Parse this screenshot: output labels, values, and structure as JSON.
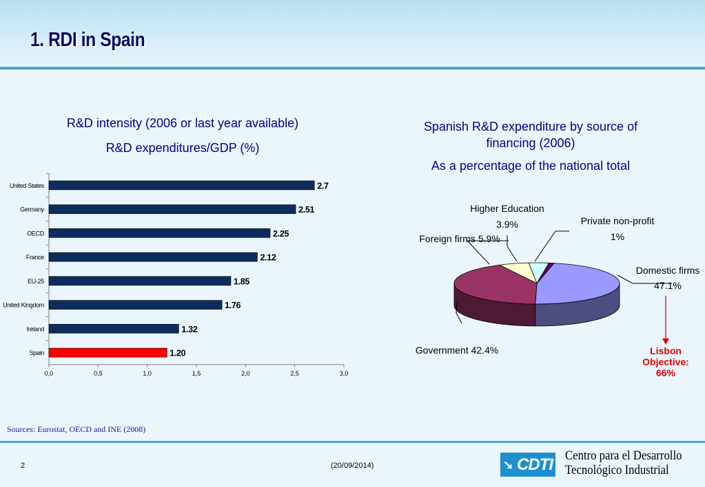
{
  "slide": {
    "title": "1. RDI in Spain",
    "sources": "Sources: Eurostat, OECD and INE (2008)",
    "page_number": "2",
    "date": "(20/09/2014)",
    "logo_text": "CDTI",
    "org_line1": "Centro para el Desarrollo",
    "org_line2": "Tecnológico Industrial"
  },
  "left_chart": {
    "title_line1": "R&D intensity (2006 or last year available)",
    "title_line2": "R&D expenditures/GDP (%)"
  },
  "right_chart": {
    "title_line1": "Spanish R&D expenditure by source of",
    "title_line2": "financing  (2006)",
    "subtitle": "As a percentage of the national total",
    "lisbon_line1": "Lisbon",
    "lisbon_line2": "Objective:",
    "lisbon_line3": "66%"
  },
  "chart_data": [
    {
      "type": "bar",
      "orientation": "horizontal",
      "title": "R&D intensity (2006 or last year available)",
      "subtitle": "R&D expenditures/GDP (%)",
      "categories": [
        "United States",
        "Germany",
        "OECD",
        "France",
        "EU-25",
        "United Kingdom",
        "Ireland",
        "Spain"
      ],
      "values": [
        2.7,
        2.51,
        2.25,
        2.12,
        1.85,
        1.76,
        1.32,
        1.2
      ],
      "value_labels": [
        "2.7",
        "2.51",
        "2.25",
        "2.12",
        "1.85",
        "1.76",
        "1.32",
        "1.20"
      ],
      "xlim": [
        0,
        3.0
      ],
      "xticks": [
        "0,0",
        "0,5",
        "1,0",
        "1,5",
        "2,0",
        "2,5",
        "3,0"
      ],
      "colors": [
        "#0d2d5e",
        "#0d2d5e",
        "#0d2d5e",
        "#0d2d5e",
        "#0d2d5e",
        "#0d2d5e",
        "#0d2d5e",
        "#ff0000"
      ],
      "grid": false
    },
    {
      "type": "pie",
      "style": "3d",
      "title": "Spanish R&D expenditure by source of financing  (2006)",
      "subtitle": "As a percentage of the national total",
      "slices": [
        {
          "label": "Domestic firms",
          "value": 47.1,
          "value_text": "47.1%",
          "color": "#9999ff"
        },
        {
          "label": "Government",
          "value": 42.4,
          "value_text": "42.4%",
          "color": "#993366"
        },
        {
          "label": "Foreign firms",
          "value": 5.9,
          "value_text": "5.9%",
          "color": "#ffffcc"
        },
        {
          "label": "Higher Education",
          "value": 3.9,
          "value_text": "3.9%",
          "color": "#ccffff"
        },
        {
          "label": "Private non-profit",
          "value": 1,
          "value_text": "1%",
          "color": "#660066"
        }
      ]
    }
  ]
}
